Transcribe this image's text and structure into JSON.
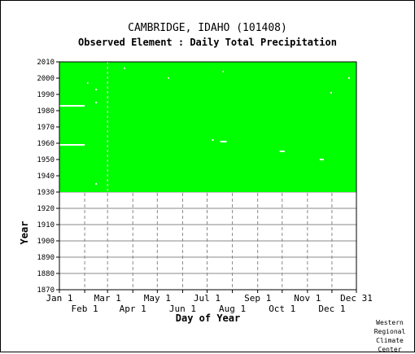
{
  "title": "CAMBRIDGE, IDAHO    (101408)",
  "subtitle": "Observed Element : Daily Total Precipitation",
  "credit": [
    "Western",
    "Regional",
    "Climate",
    "Center"
  ],
  "colors": {
    "data_present": "#00ff00",
    "missing": "#ffffff",
    "grid": "#888888"
  },
  "chart_data": {
    "type": "heatmap",
    "title": "CAMBRIDGE, IDAHO    (101408)",
    "subtitle": "Observed Element : Daily Total Precipitation",
    "xlabel": "Day of Year",
    "ylabel": "Year",
    "xlim": [
      1,
      365
    ],
    "ylim": [
      1870,
      2010
    ],
    "x_ticks_top_row": [
      {
        "label": "Jan 1",
        "day": 1
      },
      {
        "label": "Mar 1",
        "day": 60
      },
      {
        "label": "May 1",
        "day": 121
      },
      {
        "label": "Jul 1",
        "day": 182
      },
      {
        "label": "Sep 1",
        "day": 244
      },
      {
        "label": "Nov 1",
        "day": 305
      },
      {
        "label": "Dec 31",
        "day": 365
      }
    ],
    "x_ticks_bottom_row": [
      {
        "label": "Feb 1",
        "day": 32
      },
      {
        "label": "Apr 1",
        "day": 91
      },
      {
        "label": "Jun 1",
        "day": 152
      },
      {
        "label": "Aug 1",
        "day": 213
      },
      {
        "label": "Oct 1",
        "day": 274
      },
      {
        "label": "Dec 1",
        "day": 335
      }
    ],
    "y_ticks": [
      1870,
      1880,
      1890,
      1900,
      1910,
      1920,
      1930,
      1940,
      1950,
      1960,
      1970,
      1980,
      1990,
      2000,
      2010
    ],
    "grid": true,
    "data_coverage": {
      "start_year": 1930,
      "end_year": 2010
    },
    "missing_segments": [
      {
        "year": 1983,
        "start_day": 1,
        "end_day": 32
      },
      {
        "year": 1959,
        "start_day": 1,
        "end_day": 32
      },
      {
        "year": 1962,
        "start_day": 188,
        "end_day": 190
      },
      {
        "year": 1961,
        "start_day": 198,
        "end_day": 206
      },
      {
        "year": 1955,
        "start_day": 271,
        "end_day": 277
      },
      {
        "year": 1950,
        "start_day": 320,
        "end_day": 325
      },
      {
        "year": 1935,
        "start_day": 45,
        "end_day": 47
      },
      {
        "year": 2000,
        "start_day": 355,
        "end_day": 357
      },
      {
        "year": 1991,
        "start_day": 333,
        "end_day": 335
      },
      {
        "year": 1985,
        "start_day": 45,
        "end_day": 47
      },
      {
        "year": 1993,
        "start_day": 45,
        "end_day": 47
      },
      {
        "year": 1997,
        "start_day": 35,
        "end_day": 36
      },
      {
        "year": 2004,
        "start_day": 201,
        "end_day": 202
      },
      {
        "year": 2006,
        "start_day": 80,
        "end_day": 81
      },
      {
        "year": 2000,
        "start_day": 134,
        "end_day": 135
      }
    ],
    "missing_columns": [
      {
        "day": 60,
        "start_year": 1930,
        "end_year": 2010
      }
    ]
  }
}
